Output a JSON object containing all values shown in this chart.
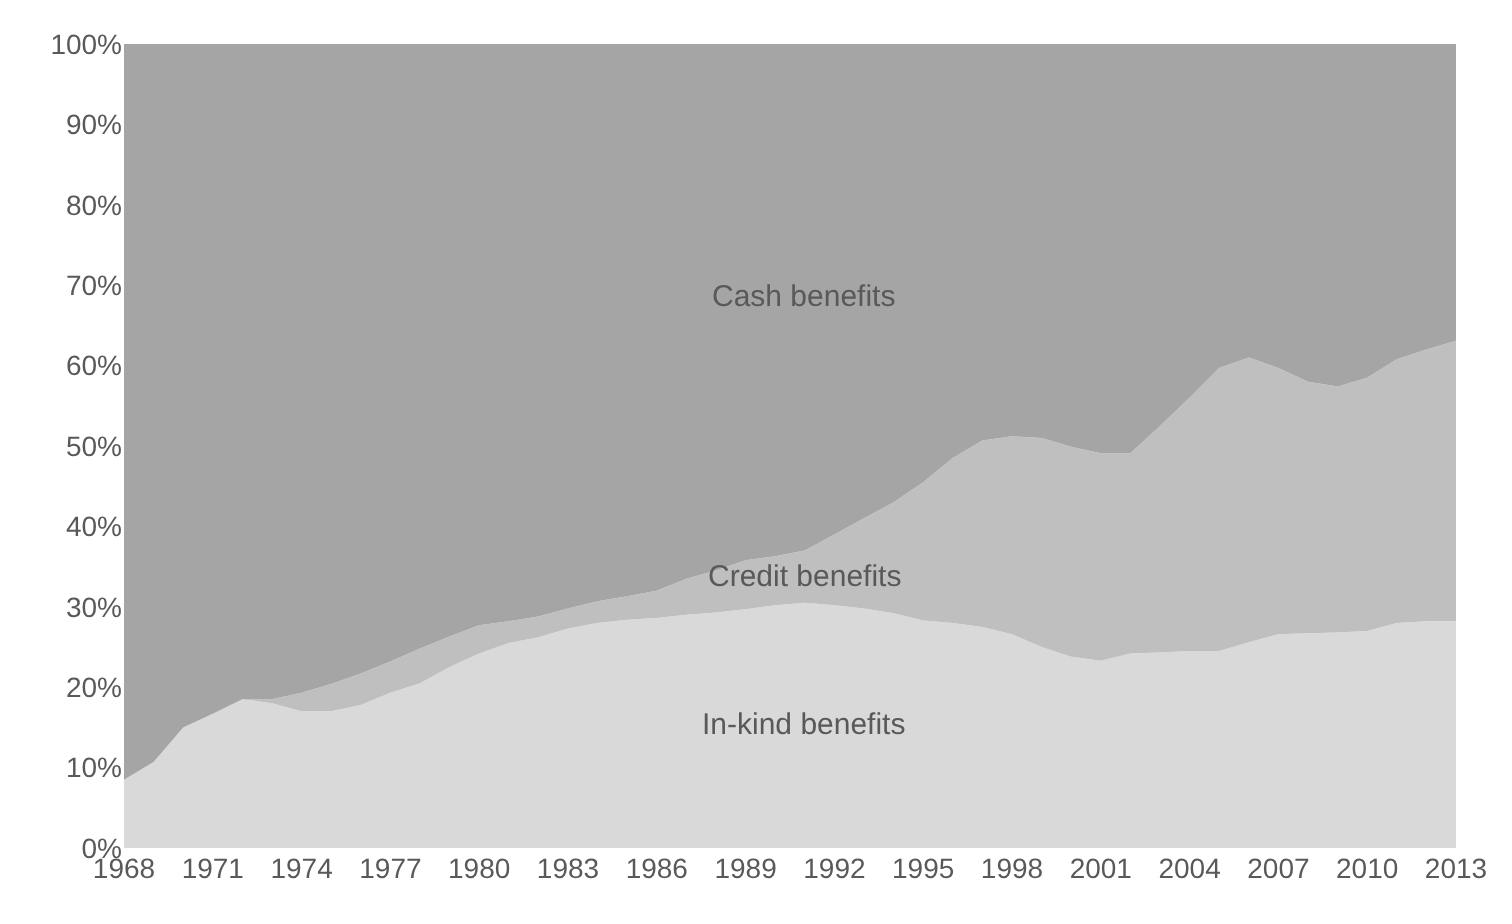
{
  "chart_data": {
    "type": "area",
    "stacked": true,
    "legend": false,
    "x": [
      1968,
      1969,
      1970,
      1971,
      1972,
      1973,
      1974,
      1975,
      1976,
      1977,
      1978,
      1979,
      1980,
      1981,
      1982,
      1983,
      1984,
      1985,
      1986,
      1987,
      1988,
      1989,
      1990,
      1991,
      1992,
      1993,
      1994,
      1995,
      1996,
      1997,
      1998,
      1999,
      2000,
      2001,
      2002,
      2003,
      2004,
      2005,
      2006,
      2007,
      2008,
      2009,
      2010,
      2011,
      2012,
      2013
    ],
    "xlim": [
      1968,
      2013
    ],
    "xticks": [
      1968,
      1971,
      1974,
      1977,
      1980,
      1983,
      1986,
      1989,
      1992,
      1995,
      1998,
      2001,
      2004,
      2007,
      2010,
      2013
    ],
    "ylim": [
      0,
      100
    ],
    "yticks": [
      {
        "value": 0,
        "label": "0%"
      },
      {
        "value": 10,
        "label": "10%"
      },
      {
        "value": 20,
        "label": "20%"
      },
      {
        "value": 30,
        "label": "30%"
      },
      {
        "value": 40,
        "label": "40%"
      },
      {
        "value": 50,
        "label": "50%"
      },
      {
        "value": 60,
        "label": "60%"
      },
      {
        "value": 70,
        "label": "70%"
      },
      {
        "value": 80,
        "label": "80%"
      },
      {
        "value": 90,
        "label": "90%"
      },
      {
        "value": 100,
        "label": "100%"
      }
    ],
    "series": [
      {
        "name": "In-kind benefits",
        "color": "#d9d9d9",
        "values": [
          8.5,
          10.7,
          15,
          16.7,
          18.5,
          18,
          17,
          17,
          17.8,
          19.3,
          20.5,
          22.5,
          24.2,
          25.5,
          26.2,
          27.3,
          28,
          28.4,
          28.6,
          29,
          29.3,
          29.7,
          30.2,
          30.5,
          30.2,
          29.8,
          29.2,
          28.3,
          28,
          27.5,
          26.6,
          25,
          23.8,
          23.3,
          24.2,
          24.3,
          24.5,
          24.5,
          25.6,
          26.6,
          26.7,
          26.8,
          27,
          28,
          28.2,
          28.2
        ]
      },
      {
        "name": "Credit benefits",
        "color": "#bfbfbf",
        "values": [
          0,
          0,
          0,
          0,
          0,
          0.5,
          2.3,
          3.4,
          3.9,
          3.9,
          4.3,
          3.8,
          3.5,
          2.7,
          2.6,
          2.5,
          2.7,
          2.9,
          3.4,
          4.5,
          5.2,
          6.1,
          6.1,
          6.5,
          8.8,
          11.2,
          13.8,
          17.2,
          20.5,
          23.2,
          24.6,
          26,
          26.1,
          25.8,
          24.9,
          28.2,
          31.5,
          35.2,
          35.4,
          33.1,
          31.3,
          30.6,
          31.5,
          32.8,
          33.8,
          34.9
        ]
      },
      {
        "name": "Cash benefits",
        "color": "#a5a5a5",
        "values": [
          91.5,
          89.3,
          85,
          83.3,
          81.5,
          81.5,
          80.7,
          79.6,
          78.3,
          76.8,
          75.2,
          73.7,
          72.3,
          71.8,
          71.2,
          70.2,
          69.3,
          68.7,
          68,
          66.5,
          65.5,
          64.2,
          63.7,
          63,
          61,
          59,
          57,
          54.5,
          51.5,
          49.3,
          48.8,
          49,
          50.1,
          50.9,
          50.9,
          47.5,
          44,
          40.3,
          39,
          40.3,
          42,
          42.6,
          41.5,
          39.2,
          38,
          36.9
        ]
      }
    ]
  }
}
